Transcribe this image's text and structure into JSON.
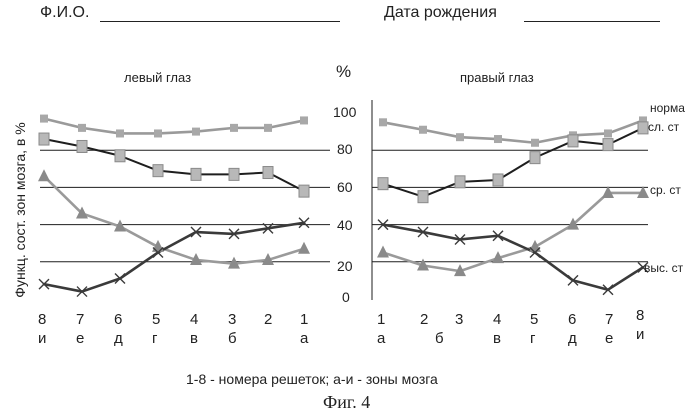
{
  "form": {
    "fio_label": "Ф.И.О.",
    "dob_label": "Дата рождения"
  },
  "y_axis_label": "Функц. сост. зон мозга, в %",
  "percent_label": "%",
  "y_ticks": [
    "0",
    "20",
    "40",
    "60",
    "80",
    "100"
  ],
  "footnote": "1-8 - номера решеток;  а-и - зоны мозга",
  "figure_caption": "Фиг. 4",
  "chart_data": [
    {
      "type": "line",
      "title": "левый глаз",
      "ylim": [
        0,
        100
      ],
      "grid": true,
      "x": [
        "8 и",
        "7 е",
        "6 д",
        "5 г",
        "4 в",
        "3 б",
        "2",
        "1 а"
      ],
      "x_numbers": [
        "8",
        "7",
        "6",
        "5",
        "4",
        "3",
        "2",
        "1"
      ],
      "x_letters": [
        "и",
        "е",
        "д",
        "г",
        "в",
        "б",
        "",
        "а"
      ],
      "series": [
        {
          "name": "норма",
          "color": "#9a9a9a",
          "marker": "square",
          "values": [
            97,
            92,
            89,
            89,
            90,
            92,
            92,
            96
          ]
        },
        {
          "name": "сл. ст",
          "color": "#1e1e1e",
          "marker": "square-gray",
          "values": [
            86,
            82,
            77,
            69,
            67,
            67,
            68,
            58
          ]
        },
        {
          "name": "ср. ст",
          "color": "#9a9a9a",
          "marker": "triangle",
          "values": [
            66,
            46,
            39,
            28,
            21,
            19,
            21,
            27
          ]
        },
        {
          "name": "выс. ст",
          "color": "#3a3a3a",
          "marker": "x",
          "values": [
            8,
            4,
            11,
            25,
            36,
            35,
            38,
            41
          ]
        }
      ]
    },
    {
      "type": "line",
      "title": "правый глаз",
      "ylim": [
        0,
        100
      ],
      "grid": true,
      "x": [
        "1 а",
        "2 б",
        "3 б",
        "4 в",
        "5 г",
        "6 д",
        "7 е",
        "8 и"
      ],
      "x_numbers": [
        "1",
        "2",
        "3",
        "4",
        "5",
        "6",
        "7",
        "8"
      ],
      "x_letters": [
        "а",
        "б",
        "б",
        "в",
        "г",
        "д",
        "е",
        "и"
      ],
      "series": [
        {
          "name": "норма",
          "color": "#9a9a9a",
          "marker": "square",
          "values": [
            95,
            91,
            87,
            86,
            84,
            88,
            89,
            96
          ]
        },
        {
          "name": "сл. ст",
          "color": "#1e1e1e",
          "marker": "square-gray",
          "values": [
            62,
            55,
            63,
            64,
            76,
            85,
            83,
            92
          ]
        },
        {
          "name": "ср. ст",
          "color": "#9a9a9a",
          "marker": "triangle",
          "values": [
            25,
            18,
            15,
            22,
            28,
            40,
            57,
            57
          ]
        },
        {
          "name": "выс. ст",
          "color": "#3a3a3a",
          "marker": "x",
          "values": [
            40,
            36,
            32,
            34,
            25,
            10,
            5,
            17
          ]
        }
      ]
    }
  ]
}
